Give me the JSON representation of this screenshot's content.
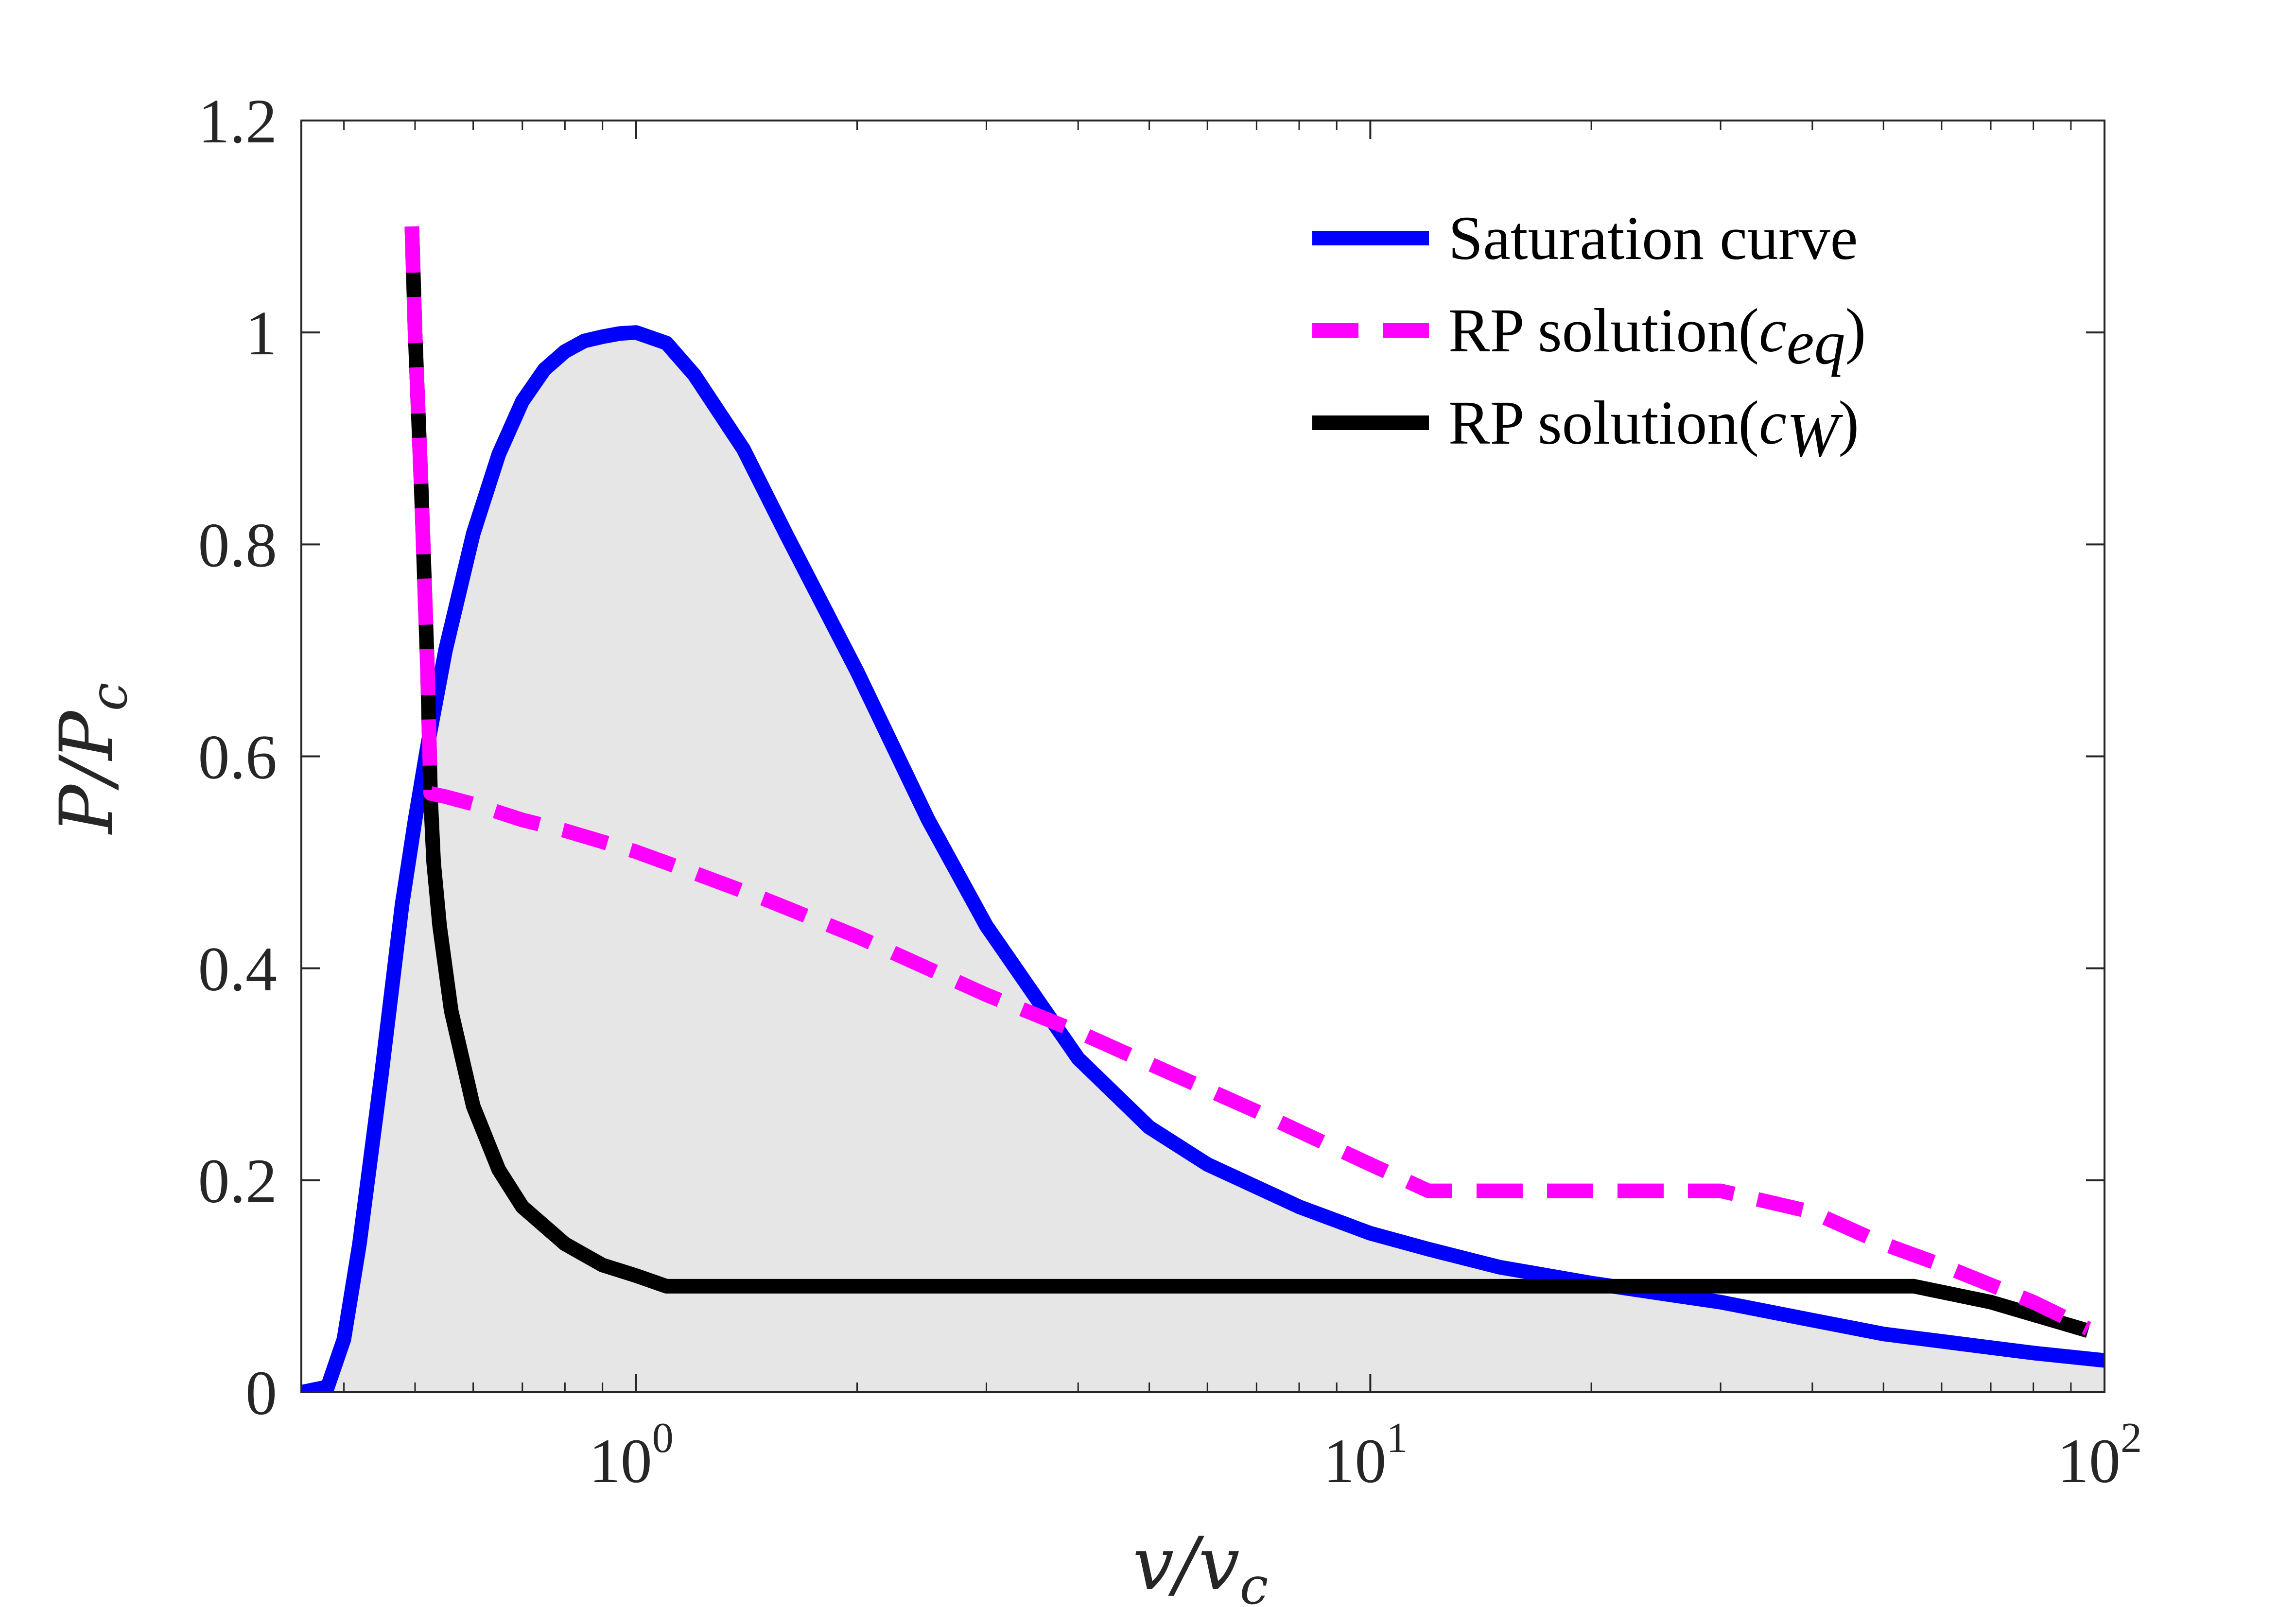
{
  "chart_data": {
    "type": "line",
    "xscale": "log",
    "xlim": [
      0.35,
      100
    ],
    "ylim": [
      0,
      1.2
    ],
    "xlabel": "v/v_c",
    "ylabel": "P/P_c",
    "x_ticks": [
      1,
      10,
      100
    ],
    "x_tick_labels": [
      {
        "base": "10",
        "exp": "0"
      },
      {
        "base": "10",
        "exp": "1"
      },
      {
        "base": "10",
        "exp": "2"
      }
    ],
    "y_ticks": [
      0,
      0.2,
      0.4,
      0.6,
      0.8,
      1.0,
      1.2
    ],
    "y_tick_labels": [
      "0",
      "0.2",
      "0.4",
      "0.6",
      "0.8",
      "1",
      "1.2"
    ],
    "grid": false,
    "legend_position": "top-right",
    "colors": {
      "saturation": "#0000ff",
      "rp_eq": "#ff00ff",
      "rp_w": "#000000",
      "fill": "#e6e6e6",
      "axis": "#262626"
    },
    "series": [
      {
        "name": "Saturation curve",
        "style": "solid",
        "color": "#0000ff",
        "x": [
          0.35,
          0.38,
          0.4,
          0.42,
          0.45,
          0.48,
          0.5,
          0.52,
          0.55,
          0.6,
          0.65,
          0.7,
          0.75,
          0.8,
          0.85,
          0.9,
          0.95,
          1.0,
          1.1,
          1.2,
          1.4,
          1.6,
          2.0,
          2.5,
          3.0,
          4.0,
          5.0,
          6.0,
          8.0,
          10.0,
          12.0,
          15.0,
          20.0,
          25.0,
          30.0,
          40.0,
          50.0,
          60.0,
          80.0,
          100.0
        ],
        "y": [
          0.0,
          0.005,
          0.05,
          0.14,
          0.3,
          0.46,
          0.54,
          0.61,
          0.7,
          0.81,
          0.885,
          0.935,
          0.965,
          0.982,
          0.992,
          0.996,
          0.999,
          1.0,
          0.99,
          0.96,
          0.89,
          0.81,
          0.68,
          0.54,
          0.44,
          0.315,
          0.25,
          0.215,
          0.175,
          0.15,
          0.135,
          0.118,
          0.103,
          0.093,
          0.085,
          0.068,
          0.055,
          0.048,
          0.037,
          0.03
        ]
      },
      {
        "name": "RP solution(c_eq)",
        "label_main": "RP solution(",
        "label_sub": "c",
        "label_subscript": "eq",
        "label_close": ")",
        "style": "dashed",
        "color": "#ff00ff",
        "x": [
          0.495,
          0.5,
          0.51,
          0.52,
          0.525,
          0.55,
          0.6,
          0.7,
          0.8,
          1.0,
          1.2,
          1.5,
          2.0,
          3.0,
          4.0,
          5.0,
          7.0,
          10.0,
          12.0,
          15.0,
          20.0,
          25.0,
          30.0,
          40.0,
          50.0,
          60.0,
          80.0,
          95.0
        ],
        "y": [
          1.1,
          1.0,
          0.85,
          0.68,
          0.565,
          0.562,
          0.555,
          0.54,
          0.53,
          0.51,
          0.49,
          0.465,
          0.43,
          0.375,
          0.34,
          0.31,
          0.265,
          0.215,
          0.19,
          0.19,
          0.19,
          0.19,
          0.19,
          0.17,
          0.14,
          0.12,
          0.085,
          0.06
        ]
      },
      {
        "name": "RP solution(c_W)",
        "label_main": "RP solution(",
        "label_sub": "c",
        "label_subscript": "W",
        "label_close": ")",
        "style": "solid",
        "color": "#000000",
        "x": [
          0.495,
          0.5,
          0.51,
          0.52,
          0.525,
          0.53,
          0.54,
          0.56,
          0.6,
          0.65,
          0.7,
          0.8,
          0.9,
          1.0,
          1.1,
          1.12,
          5.0,
          20.0,
          40.0,
          55.0,
          70.0,
          95.0
        ],
        "y": [
          1.1,
          1.0,
          0.85,
          0.68,
          0.56,
          0.5,
          0.44,
          0.36,
          0.27,
          0.21,
          0.175,
          0.14,
          0.12,
          0.11,
          0.1,
          0.1,
          0.1,
          0.1,
          0.1,
          0.1,
          0.085,
          0.058
        ]
      }
    ]
  }
}
